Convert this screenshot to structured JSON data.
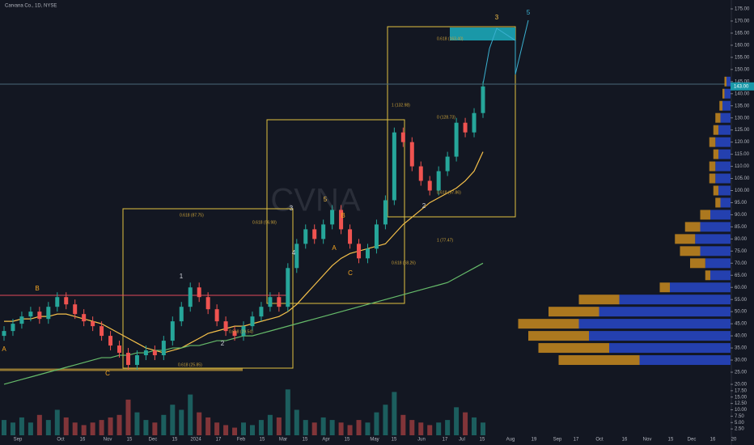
{
  "header": {
    "title": "Carvana Co., 1D, NYSE",
    "watermark": "CVNA"
  },
  "chart_data": {
    "type": "candlestick",
    "ohlc": {
      "open": [
        40,
        42,
        45,
        48,
        50,
        47,
        52,
        56,
        53,
        49,
        46,
        44,
        40,
        36,
        33,
        28,
        32,
        34,
        32,
        38,
        46,
        52,
        60,
        56,
        51,
        46,
        42,
        40,
        44,
        48,
        52,
        56,
        52,
        68,
        78,
        84,
        80,
        86,
        92,
        84,
        78,
        72,
        76,
        86,
        96,
        124,
        120,
        110,
        104,
        100,
        108,
        114,
        128,
        124,
        132
      ],
      "high": [
        44,
        47,
        50,
        52,
        52,
        54,
        58,
        58,
        55,
        51,
        48,
        46,
        42,
        38,
        35,
        34,
        36,
        36,
        40,
        48,
        54,
        62,
        62,
        58,
        53,
        48,
        44,
        46,
        50,
        54,
        58,
        58,
        70,
        80,
        86,
        86,
        88,
        94,
        94,
        86,
        80,
        78,
        88,
        98,
        126,
        126,
        122,
        112,
        106,
        110,
        116,
        130,
        130,
        134,
        145
      ],
      "low": [
        38,
        40,
        43,
        46,
        45,
        45,
        50,
        51,
        47,
        44,
        42,
        38,
        34,
        31,
        26,
        26,
        30,
        30,
        30,
        36,
        44,
        50,
        54,
        49,
        44,
        40,
        38,
        38,
        42,
        46,
        50,
        50,
        50,
        66,
        76,
        78,
        78,
        84,
        82,
        76,
        70,
        70,
        74,
        84,
        94,
        118,
        108,
        102,
        98,
        98,
        106,
        112,
        122,
        122,
        130
      ],
      "close": [
        42,
        45,
        48,
        50,
        47,
        52,
        56,
        53,
        49,
        46,
        44,
        40,
        36,
        33,
        28,
        32,
        34,
        32,
        38,
        46,
        52,
        60,
        56,
        51,
        46,
        42,
        40,
        44,
        48,
        52,
        56,
        52,
        68,
        78,
        84,
        80,
        86,
        92,
        84,
        78,
        72,
        76,
        86,
        96,
        124,
        120,
        110,
        104,
        100,
        108,
        114,
        128,
        124,
        132,
        143
      ]
    },
    "up_color": "#26a69a",
    "down_color": "#ef5350",
    "volume": [
      6,
      5,
      7,
      5,
      8,
      6,
      10,
      7,
      5,
      4,
      5,
      6,
      7,
      8,
      14,
      9,
      6,
      5,
      8,
      12,
      10,
      16,
      9,
      7,
      5,
      4,
      3,
      5,
      4,
      6,
      8,
      7,
      18,
      10,
      6,
      5,
      7,
      6,
      5,
      4,
      6,
      5,
      9,
      12,
      17,
      8,
      6,
      5,
      4,
      5,
      6,
      11,
      9,
      7,
      5
    ],
    "indicators": [
      {
        "color": "#f5c04a",
        "values": [
          46,
          46,
          47,
          47,
          48,
          48,
          49,
          49,
          48,
          47,
          46,
          45,
          43,
          41,
          39,
          37,
          35,
          34,
          33,
          34,
          35,
          37,
          39,
          41,
          42,
          43,
          44,
          44,
          45,
          46,
          47,
          48,
          50,
          53,
          57,
          61,
          65,
          69,
          72,
          74,
          75,
          76,
          77,
          78,
          82,
          86,
          89,
          92,
          95,
          97,
          99,
          101,
          104,
          108,
          116
        ]
      },
      {
        "color": "#66bb6a",
        "values": [
          20,
          21,
          22,
          23,
          24,
          25,
          26,
          27,
          28,
          29,
          30,
          31,
          31,
          32,
          32,
          33,
          33,
          34,
          34,
          35,
          35,
          36,
          36,
          37,
          38,
          38,
          39,
          40,
          40,
          41,
          42,
          43,
          44,
          45,
          46,
          47,
          48,
          49,
          50,
          51,
          52,
          53,
          54,
          55,
          56,
          57,
          58,
          59,
          60,
          61,
          62,
          64,
          66,
          68,
          70
        ]
      }
    ],
    "volume_profile": {
      "up_color": "#2848c8",
      "down_color": "#c88a1e",
      "levels": [
        30,
        35,
        40,
        45,
        50,
        55,
        60,
        65,
        70,
        75,
        80,
        85,
        90,
        95,
        100,
        105,
        110,
        115,
        120,
        125,
        130,
        135,
        140,
        145
      ],
      "up": [
        90,
        120,
        140,
        150,
        130,
        110,
        60,
        20,
        25,
        30,
        35,
        30,
        20,
        10,
        12,
        15,
        15,
        12,
        15,
        12,
        10,
        8,
        6,
        4
      ],
      "down": [
        80,
        70,
        60,
        60,
        50,
        40,
        10,
        5,
        15,
        20,
        20,
        15,
        10,
        5,
        5,
        6,
        6,
        5,
        6,
        5,
        5,
        3,
        2,
        2
      ]
    },
    "ylim": [
      25,
      175
    ],
    "yticks": [
      {
        "value": 175,
        "label": "175.00"
      },
      {
        "value": 170,
        "label": "170.00"
      },
      {
        "value": 165,
        "label": "165.00"
      },
      {
        "value": 160,
        "label": "160.00"
      },
      {
        "value": 155,
        "label": "155.00"
      },
      {
        "value": 150,
        "label": "150.00"
      },
      {
        "value": 145,
        "label": "145.00"
      },
      {
        "value": 140,
        "label": "140.00"
      },
      {
        "value": 135,
        "label": "135.00"
      },
      {
        "value": 130,
        "label": "130.00"
      },
      {
        "value": 125,
        "label": "125.00"
      },
      {
        "value": 120,
        "label": "120.00"
      },
      {
        "value": 115,
        "label": "115.00"
      },
      {
        "value": 110,
        "label": "110.00"
      },
      {
        "value": 105,
        "label": "105.00"
      },
      {
        "value": 100,
        "label": "100.00"
      },
      {
        "value": 95,
        "label": "95.00"
      },
      {
        "value": 90,
        "label": "90.00"
      },
      {
        "value": 85,
        "label": "85.00"
      },
      {
        "value": 80,
        "label": "80.00"
      },
      {
        "value": 75,
        "label": "75.00"
      },
      {
        "value": 70,
        "label": "70.00"
      },
      {
        "value": 65,
        "label": "65.00"
      },
      {
        "value": 60,
        "label": "60.00"
      },
      {
        "value": 55,
        "label": "55.00"
      },
      {
        "value": 50,
        "label": "50.00"
      },
      {
        "value": 45,
        "label": "45.00"
      },
      {
        "value": 40,
        "label": "40.00"
      },
      {
        "value": 35,
        "label": "35.00"
      },
      {
        "value": 30,
        "label": "30.00"
      },
      {
        "value": 25,
        "label": "25.00"
      }
    ],
    "vlim": [
      0,
      20
    ],
    "vticks": [
      {
        "value": 20,
        "label": "20.00"
      },
      {
        "value": 17.5,
        "label": "17.50"
      },
      {
        "value": 15,
        "label": "15.00"
      },
      {
        "value": 12.5,
        "label": "12.50"
      },
      {
        "value": 10,
        "label": "10.00"
      },
      {
        "value": 7.5,
        "label": "7.50"
      },
      {
        "value": 5,
        "label": "5.00"
      },
      {
        "value": 2.5,
        "label": "2.50"
      }
    ],
    "price_tag": {
      "value": 143,
      "label": "143.00"
    },
    "time_labels": [
      "Sep",
      "Oct",
      "16",
      "Nov",
      "15",
      "Dec",
      "15",
      "2024",
      "17",
      "Feb",
      "15",
      "Mar",
      "15",
      "Apr",
      "15",
      "May",
      "15",
      "Jun",
      "17",
      "Jul",
      "15",
      "Aug",
      "19",
      "Sep",
      "17",
      "Oct",
      "16",
      "Nov",
      "15",
      "Dec",
      "16",
      "20"
    ],
    "annotations": [
      "B",
      "A",
      "C",
      "1",
      "2",
      "3",
      "4",
      "5",
      "B",
      "A",
      "C",
      "2",
      "3",
      "5"
    ],
    "fib_labels": [
      "0.618 (87.75)",
      "0.618 (96.98)",
      "0.618 (29.54)",
      "0.618 (25.85)",
      "1 (77.47)",
      "0.618 (68.26)",
      "1 (132.98)",
      "0 (128.73)",
      "0.618 (163.40)",
      "0.618 (97.86)"
    ]
  }
}
